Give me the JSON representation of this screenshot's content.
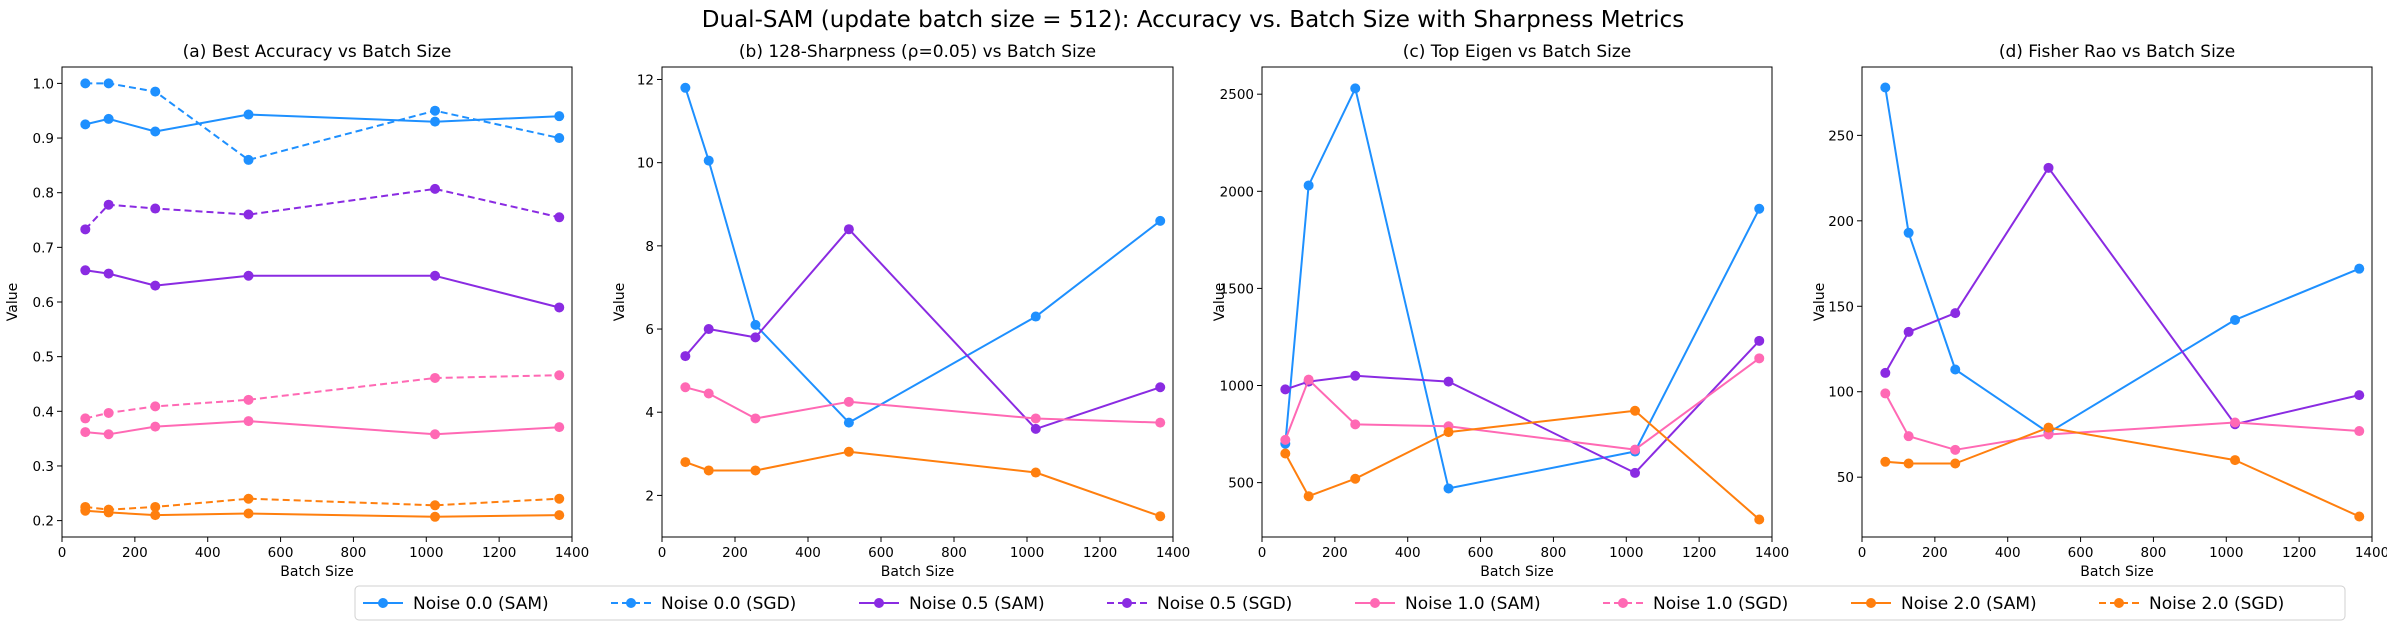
{
  "suptitle": "Dual-SAM (update batch size = 512): Accuracy vs. Batch Size with Sharpness Metrics",
  "colors": {
    "noise_0": "#1e90ff",
    "noise_0_5": "#8a2be2",
    "noise_1": "#ff69b4",
    "noise_2": "#ff7f0e"
  },
  "legend": [
    {
      "label": "Noise 0.0 (SAM)",
      "color": "#1e90ff",
      "dashed": false
    },
    {
      "label": "Noise 0.0 (SGD)",
      "color": "#1e90ff",
      "dashed": true
    },
    {
      "label": "Noise 0.5 (SAM)",
      "color": "#8a2be2",
      "dashed": false
    },
    {
      "label": "Noise 0.5 (SGD)",
      "color": "#8a2be2",
      "dashed": true
    },
    {
      "label": "Noise 1.0 (SAM)",
      "color": "#ff69b4",
      "dashed": false
    },
    {
      "label": "Noise 1.0 (SGD)",
      "color": "#ff69b4",
      "dashed": true
    },
    {
      "label": "Noise 2.0 (SAM)",
      "color": "#ff7f0e",
      "dashed": false
    },
    {
      "label": "Noise 2.0 (SGD)",
      "color": "#ff7f0e",
      "dashed": true
    }
  ],
  "chart_data": [
    {
      "type": "line",
      "title": "(a) Best Accuracy vs Batch Size",
      "xlabel": "Batch Size",
      "ylabel": "Value",
      "xlim": [
        0,
        1400
      ],
      "ylim": [
        0.17,
        1.03
      ],
      "xticks": [
        0,
        200,
        400,
        600,
        800,
        1000,
        1200,
        1400
      ],
      "yticks": [
        0.2,
        0.3,
        0.4,
        0.5,
        0.6,
        0.7,
        0.8,
        0.9,
        1.0
      ],
      "ytick_labels": [
        "0.2",
        "0.3",
        "0.4",
        "0.5",
        "0.6",
        "0.7",
        "0.8",
        "0.9",
        "1.0"
      ],
      "grid": false,
      "series": [
        {
          "name": "Noise 0.0 (SAM)",
          "color": "#1e90ff",
          "dashed": false,
          "x": [
            64,
            128,
            256,
            512,
            1024,
            1365
          ],
          "y": [
            0.925,
            0.935,
            0.912,
            0.943,
            0.93,
            0.94
          ]
        },
        {
          "name": "Noise 0.0 (SGD)",
          "color": "#1e90ff",
          "dashed": true,
          "x": [
            64,
            128,
            256,
            512,
            1024,
            1365
          ],
          "y": [
            1.0,
            1.0,
            0.985,
            0.86,
            0.95,
            0.9
          ]
        },
        {
          "name": "Noise 0.5 (SAM)",
          "color": "#8a2be2",
          "dashed": false,
          "x": [
            64,
            128,
            256,
            512,
            1024,
            1365
          ],
          "y": [
            0.658,
            0.652,
            0.63,
            0.648,
            0.648,
            0.59
          ]
        },
        {
          "name": "Noise 0.5 (SGD)",
          "color": "#8a2be2",
          "dashed": true,
          "x": [
            64,
            128,
            256,
            512,
            1024,
            1365
          ],
          "y": [
            0.733,
            0.778,
            0.771,
            0.76,
            0.807,
            0.755
          ]
        },
        {
          "name": "Noise 1.0 (SAM)",
          "color": "#ff69b4",
          "dashed": false,
          "x": [
            64,
            128,
            256,
            512,
            1024,
            1365
          ],
          "y": [
            0.362,
            0.358,
            0.372,
            0.382,
            0.358,
            0.371
          ]
        },
        {
          "name": "Noise 1.0 (SGD)",
          "color": "#ff69b4",
          "dashed": true,
          "x": [
            64,
            128,
            256,
            512,
            1024,
            1365
          ],
          "y": [
            0.387,
            0.397,
            0.409,
            0.421,
            0.461,
            0.466
          ]
        },
        {
          "name": "Noise 2.0 (SAM)",
          "color": "#ff7f0e",
          "dashed": false,
          "x": [
            64,
            128,
            256,
            512,
            1024,
            1365
          ],
          "y": [
            0.218,
            0.215,
            0.21,
            0.213,
            0.207,
            0.21
          ]
        },
        {
          "name": "Noise 2.0 (SGD)",
          "color": "#ff7f0e",
          "dashed": true,
          "x": [
            64,
            128,
            256,
            512,
            1024,
            1365
          ],
          "y": [
            0.225,
            0.22,
            0.225,
            0.24,
            0.228,
            0.24
          ]
        }
      ]
    },
    {
      "type": "line",
      "title": "(b) 128-Sharpness (ρ=0.05) vs Batch Size",
      "xlabel": "Batch Size",
      "ylabel": "Value",
      "xlim": [
        0,
        1400
      ],
      "ylim": [
        1.0,
        12.3
      ],
      "xticks": [
        0,
        200,
        400,
        600,
        800,
        1000,
        1200,
        1400
      ],
      "yticks": [
        2,
        4,
        6,
        8,
        10,
        12
      ],
      "ytick_labels": [
        "2",
        "4",
        "6",
        "8",
        "10",
        "12"
      ],
      "grid": false,
      "series": [
        {
          "name": "Noise 0.0 (SAM)",
          "color": "#1e90ff",
          "dashed": false,
          "x": [
            64,
            128,
            256,
            512,
            1024,
            1365
          ],
          "y": [
            11.8,
            10.05,
            6.1,
            3.75,
            6.3,
            8.6
          ]
        },
        {
          "name": "Noise 0.5 (SAM)",
          "color": "#8a2be2",
          "dashed": false,
          "x": [
            64,
            128,
            256,
            512,
            1024,
            1365
          ],
          "y": [
            5.35,
            6.0,
            5.8,
            8.4,
            3.6,
            4.6
          ]
        },
        {
          "name": "Noise 1.0 (SAM)",
          "color": "#ff69b4",
          "dashed": false,
          "x": [
            64,
            128,
            256,
            512,
            1024,
            1365
          ],
          "y": [
            4.6,
            4.45,
            3.85,
            4.25,
            3.85,
            3.75
          ]
        },
        {
          "name": "Noise 2.0 (SAM)",
          "color": "#ff7f0e",
          "dashed": false,
          "x": [
            64,
            128,
            256,
            512,
            1024,
            1365
          ],
          "y": [
            2.8,
            2.6,
            2.6,
            3.05,
            2.55,
            1.5
          ]
        }
      ]
    },
    {
      "type": "line",
      "title": "(c) Top Eigen vs Batch Size",
      "xlabel": "Batch Size",
      "ylabel": "Value",
      "xlim": [
        0,
        1400
      ],
      "ylim": [
        220,
        2640
      ],
      "xticks": [
        0,
        200,
        400,
        600,
        800,
        1000,
        1200,
        1400
      ],
      "yticks": [
        500,
        1000,
        1500,
        2000,
        2500
      ],
      "ytick_labels": [
        "500",
        "1000",
        "1500",
        "2000",
        "2500"
      ],
      "grid": false,
      "series": [
        {
          "name": "Noise 0.0 (SAM)",
          "color": "#1e90ff",
          "dashed": false,
          "x": [
            64,
            128,
            256,
            512,
            1024,
            1365
          ],
          "y": [
            700,
            2030,
            2530,
            470,
            660,
            1910
          ]
        },
        {
          "name": "Noise 0.5 (SAM)",
          "color": "#8a2be2",
          "dashed": false,
          "x": [
            64,
            128,
            256,
            512,
            1024,
            1365
          ],
          "y": [
            980,
            1020,
            1050,
            1020,
            550,
            1230
          ]
        },
        {
          "name": "Noise 1.0 (SAM)",
          "color": "#ff69b4",
          "dashed": false,
          "x": [
            64,
            128,
            256,
            512,
            1024,
            1365
          ],
          "y": [
            720,
            1030,
            800,
            790,
            670,
            1140
          ]
        },
        {
          "name": "Noise 2.0 (SAM)",
          "color": "#ff7f0e",
          "dashed": false,
          "x": [
            64,
            128,
            256,
            512,
            1024,
            1365
          ],
          "y": [
            650,
            430,
            520,
            760,
            870,
            310
          ]
        }
      ]
    },
    {
      "type": "line",
      "title": "(d) Fisher Rao vs Batch Size",
      "xlabel": "Batch Size",
      "ylabel": "Value",
      "xlim": [
        0,
        1400
      ],
      "ylim": [
        15,
        290
      ],
      "xticks": [
        0,
        200,
        400,
        600,
        800,
        1000,
        1200,
        1400
      ],
      "yticks": [
        50,
        100,
        150,
        200,
        250
      ],
      "ytick_labels": [
        "50",
        "100",
        "150",
        "200",
        "250"
      ],
      "grid": false,
      "series": [
        {
          "name": "Noise 0.0 (SAM)",
          "color": "#1e90ff",
          "dashed": false,
          "x": [
            64,
            128,
            256,
            512,
            1024,
            1365
          ],
          "y": [
            278,
            193,
            113,
            76,
            142,
            172
          ]
        },
        {
          "name": "Noise 0.5 (SAM)",
          "color": "#8a2be2",
          "dashed": false,
          "x": [
            64,
            128,
            256,
            512,
            1024,
            1365
          ],
          "y": [
            111,
            135,
            146,
            231,
            81,
            98
          ]
        },
        {
          "name": "Noise 1.0 (SAM)",
          "color": "#ff69b4",
          "dashed": false,
          "x": [
            64,
            128,
            256,
            512,
            1024,
            1365
          ],
          "y": [
            99,
            74,
            66,
            75,
            82,
            77
          ]
        },
        {
          "name": "Noise 2.0 (SAM)",
          "color": "#ff7f0e",
          "dashed": false,
          "x": [
            64,
            128,
            256,
            512,
            1024,
            1365
          ],
          "y": [
            59,
            58,
            58,
            79,
            60,
            27
          ]
        }
      ]
    }
  ]
}
